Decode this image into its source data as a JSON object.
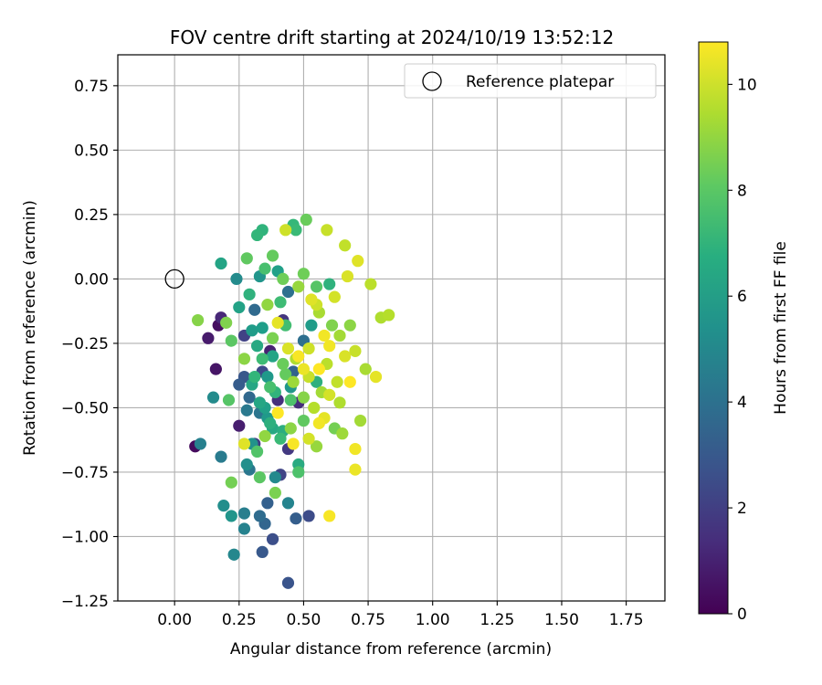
{
  "chart_data": {
    "type": "scatter",
    "title": "FOV centre drift starting at 2024/10/19 13:52:12",
    "xlabel": "Angular distance from reference (arcmin)",
    "ylabel": "Rotation from reference (arcmin)",
    "xlim": [
      -0.22,
      1.9
    ],
    "ylim": [
      -1.25,
      0.87
    ],
    "xticks": [
      0.0,
      0.25,
      0.5,
      0.75,
      1.0,
      1.25,
      1.5,
      1.75
    ],
    "xtick_labels": [
      "0.00",
      "0.25",
      "0.50",
      "0.75",
      "1.00",
      "1.25",
      "1.50",
      "1.75"
    ],
    "yticks": [
      0.75,
      0.5,
      0.25,
      0.0,
      -0.25,
      -0.5,
      -0.75,
      -1.0,
      -1.25
    ],
    "ytick_labels": [
      "0.75",
      "0.50",
      "0.25",
      "0.00",
      "−0.25",
      "−0.50",
      "−0.75",
      "−1.00",
      "−1.25"
    ],
    "grid": true,
    "legend": {
      "placement": "top-right",
      "label": "Reference platepar"
    },
    "reference_point": {
      "x": 0.0,
      "y": 0.0
    },
    "colorbar": {
      "label": "Hours from first FF file",
      "colormap": "viridis",
      "range": [
        0,
        10.8
      ],
      "ticks": [
        0,
        2,
        4,
        6,
        8,
        10
      ],
      "tick_labels": [
        "0",
        "2",
        "4",
        "6",
        "8",
        "10"
      ]
    },
    "points": [
      {
        "x": 0.08,
        "y": -0.65,
        "h": 0.3
      },
      {
        "x": 0.13,
        "y": -0.23,
        "h": 0.8
      },
      {
        "x": 0.17,
        "y": -0.18,
        "h": 0.4
      },
      {
        "x": 0.16,
        "y": -0.35,
        "h": 0.6
      },
      {
        "x": 0.18,
        "y": -0.15,
        "h": 1.2
      },
      {
        "x": 0.25,
        "y": -0.57,
        "h": 0.9
      },
      {
        "x": 0.37,
        "y": -0.28,
        "h": 1.0
      },
      {
        "x": 0.4,
        "y": -0.47,
        "h": 1.5
      },
      {
        "x": 0.44,
        "y": -0.66,
        "h": 1.8
      },
      {
        "x": 0.48,
        "y": -0.48,
        "h": 1.4
      },
      {
        "x": 0.31,
        "y": -0.64,
        "h": 1.9
      },
      {
        "x": 0.42,
        "y": -0.16,
        "h": 1.7
      },
      {
        "x": 0.27,
        "y": -0.22,
        "h": 2.1
      },
      {
        "x": 0.34,
        "y": -0.36,
        "h": 2.4
      },
      {
        "x": 0.38,
        "y": -1.01,
        "h": 2.6
      },
      {
        "x": 0.44,
        "y": -1.18,
        "h": 2.8
      },
      {
        "x": 0.34,
        "y": -1.06,
        "h": 3.0
      },
      {
        "x": 0.47,
        "y": -0.93,
        "h": 3.2
      },
      {
        "x": 0.52,
        "y": -0.92,
        "h": 2.5
      },
      {
        "x": 0.41,
        "y": -0.76,
        "h": 2.2
      },
      {
        "x": 0.35,
        "y": -0.95,
        "h": 3.5
      },
      {
        "x": 0.33,
        "y": -0.92,
        "h": 3.8
      },
      {
        "x": 0.36,
        "y": -0.87,
        "h": 3.3
      },
      {
        "x": 0.25,
        "y": -0.41,
        "h": 3.1
      },
      {
        "x": 0.29,
        "y": -0.46,
        "h": 3.6
      },
      {
        "x": 0.46,
        "y": -0.36,
        "h": 3.4
      },
      {
        "x": 0.5,
        "y": -0.24,
        "h": 3.9
      },
      {
        "x": 0.31,
        "y": -0.12,
        "h": 3.7
      },
      {
        "x": 0.44,
        "y": -0.05,
        "h": 4.0
      },
      {
        "x": 0.27,
        "y": -0.38,
        "h": 2.9
      },
      {
        "x": 0.33,
        "y": -0.52,
        "h": 4.2
      },
      {
        "x": 0.29,
        "y": -0.74,
        "h": 4.3
      },
      {
        "x": 0.27,
        "y": -0.91,
        "h": 4.6
      },
      {
        "x": 0.27,
        "y": -0.97,
        "h": 4.8
      },
      {
        "x": 0.23,
        "y": -1.07,
        "h": 5.0
      },
      {
        "x": 0.18,
        "y": -0.69,
        "h": 4.5
      },
      {
        "x": 0.1,
        "y": -0.64,
        "h": 4.7
      },
      {
        "x": 0.15,
        "y": -0.46,
        "h": 5.2
      },
      {
        "x": 0.28,
        "y": -0.51,
        "h": 4.4
      },
      {
        "x": 0.44,
        "y": -0.87,
        "h": 4.9
      },
      {
        "x": 0.39,
        "y": -0.77,
        "h": 5.1
      },
      {
        "x": 0.28,
        "y": -0.72,
        "h": 5.4
      },
      {
        "x": 0.22,
        "y": -0.92,
        "h": 5.6
      },
      {
        "x": 0.19,
        "y": -0.88,
        "h": 5.3
      },
      {
        "x": 0.3,
        "y": -0.64,
        "h": 5.5
      },
      {
        "x": 0.36,
        "y": -0.54,
        "h": 5.8
      },
      {
        "x": 0.45,
        "y": -0.42,
        "h": 5.7
      },
      {
        "x": 0.53,
        "y": -0.18,
        "h": 5.9
      },
      {
        "x": 0.34,
        "y": -0.19,
        "h": 6.0
      },
      {
        "x": 0.33,
        "y": 0.01,
        "h": 5.6
      },
      {
        "x": 0.4,
        "y": 0.03,
        "h": 6.1
      },
      {
        "x": 0.24,
        "y": 0.0,
        "h": 5.2
      },
      {
        "x": 0.25,
        "y": -0.11,
        "h": 6.2
      },
      {
        "x": 0.18,
        "y": 0.06,
        "h": 6.3
      },
      {
        "x": 0.3,
        "y": -0.41,
        "h": 6.4
      },
      {
        "x": 0.38,
        "y": -0.58,
        "h": 6.5
      },
      {
        "x": 0.48,
        "y": -0.72,
        "h": 6.6
      },
      {
        "x": 0.42,
        "y": -0.59,
        "h": 6.7
      },
      {
        "x": 0.55,
        "y": -0.4,
        "h": 6.8
      },
      {
        "x": 0.6,
        "y": -0.02,
        "h": 6.9
      },
      {
        "x": 0.34,
        "y": 0.19,
        "h": 7.0
      },
      {
        "x": 0.32,
        "y": 0.17,
        "h": 7.1
      },
      {
        "x": 0.46,
        "y": 0.21,
        "h": 7.2
      },
      {
        "x": 0.47,
        "y": 0.19,
        "h": 7.3
      },
      {
        "x": 0.34,
        "y": -0.31,
        "h": 7.4
      },
      {
        "x": 0.43,
        "y": -0.18,
        "h": 7.5
      },
      {
        "x": 0.37,
        "y": -0.42,
        "h": 7.6
      },
      {
        "x": 0.48,
        "y": -0.75,
        "h": 7.7
      },
      {
        "x": 0.32,
        "y": -0.67,
        "h": 7.8
      },
      {
        "x": 0.21,
        "y": -0.47,
        "h": 7.9
      },
      {
        "x": 0.22,
        "y": -0.24,
        "h": 8.0
      },
      {
        "x": 0.28,
        "y": 0.08,
        "h": 8.1
      },
      {
        "x": 0.38,
        "y": 0.09,
        "h": 8.2
      },
      {
        "x": 0.51,
        "y": 0.23,
        "h": 8.3
      },
      {
        "x": 0.5,
        "y": 0.02,
        "h": 8.4
      },
      {
        "x": 0.22,
        "y": -0.79,
        "h": 8.5
      },
      {
        "x": 0.39,
        "y": -0.83,
        "h": 8.6
      },
      {
        "x": 0.33,
        "y": -0.77,
        "h": 8.0
      },
      {
        "x": 0.2,
        "y": -0.17,
        "h": 8.7
      },
      {
        "x": 0.09,
        "y": -0.16,
        "h": 8.8
      },
      {
        "x": 0.27,
        "y": -0.31,
        "h": 8.9
      },
      {
        "x": 0.35,
        "y": -0.61,
        "h": 9.0
      },
      {
        "x": 0.55,
        "y": -0.65,
        "h": 9.1
      },
      {
        "x": 0.65,
        "y": -0.6,
        "h": 9.2
      },
      {
        "x": 0.72,
        "y": -0.55,
        "h": 9.3
      },
      {
        "x": 0.74,
        "y": -0.35,
        "h": 9.4
      },
      {
        "x": 0.8,
        "y": -0.15,
        "h": 9.5
      },
      {
        "x": 0.83,
        "y": -0.14,
        "h": 9.6
      },
      {
        "x": 0.76,
        "y": -0.02,
        "h": 9.7
      },
      {
        "x": 0.66,
        "y": 0.13,
        "h": 9.8
      },
      {
        "x": 0.59,
        "y": 0.19,
        "h": 9.9
      },
      {
        "x": 0.43,
        "y": 0.19,
        "h": 10.0
      },
      {
        "x": 0.62,
        "y": -0.07,
        "h": 10.1
      },
      {
        "x": 0.67,
        "y": 0.01,
        "h": 10.2
      },
      {
        "x": 0.71,
        "y": 0.07,
        "h": 10.3
      },
      {
        "x": 0.78,
        "y": -0.38,
        "h": 10.4
      },
      {
        "x": 0.7,
        "y": -0.74,
        "h": 10.5
      },
      {
        "x": 0.7,
        "y": -0.66,
        "h": 10.6
      },
      {
        "x": 0.6,
        "y": -0.92,
        "h": 10.7
      },
      {
        "x": 0.68,
        "y": -0.4,
        "h": 10.8
      },
      {
        "x": 0.56,
        "y": -0.56,
        "h": 10.6
      },
      {
        "x": 0.5,
        "y": -0.35,
        "h": 10.5
      },
      {
        "x": 0.48,
        "y": -0.3,
        "h": 10.7
      },
      {
        "x": 0.44,
        "y": -0.27,
        "h": 10.2
      },
      {
        "x": 0.4,
        "y": -0.17,
        "h": 10.4
      },
      {
        "x": 0.52,
        "y": -0.62,
        "h": 10.1
      },
      {
        "x": 0.27,
        "y": -0.64,
        "h": 10.3
      },
      {
        "x": 0.4,
        "y": -0.52,
        "h": 10.8
      },
      {
        "x": 0.6,
        "y": -0.26,
        "h": 10.6
      },
      {
        "x": 0.55,
        "y": -0.1,
        "h": 10.0
      },
      {
        "x": 0.59,
        "y": -0.33,
        "h": 9.7
      },
      {
        "x": 0.64,
        "y": -0.48,
        "h": 9.5
      },
      {
        "x": 0.57,
        "y": -0.44,
        "h": 9.3
      },
      {
        "x": 0.63,
        "y": -0.4,
        "h": 9.8
      },
      {
        "x": 0.66,
        "y": -0.3,
        "h": 10.2
      },
      {
        "x": 0.7,
        "y": -0.28,
        "h": 9.9
      },
      {
        "x": 0.36,
        "y": -0.1,
        "h": 9.0
      },
      {
        "x": 0.38,
        "y": -0.23,
        "h": 8.6
      },
      {
        "x": 0.42,
        "y": -0.33,
        "h": 8.3
      },
      {
        "x": 0.46,
        "y": -0.4,
        "h": 9.2
      },
      {
        "x": 0.5,
        "y": -0.46,
        "h": 8.8
      },
      {
        "x": 0.54,
        "y": -0.5,
        "h": 9.6
      },
      {
        "x": 0.58,
        "y": -0.54,
        "h": 10.4
      },
      {
        "x": 0.45,
        "y": -0.58,
        "h": 8.9
      },
      {
        "x": 0.41,
        "y": -0.62,
        "h": 7.3
      },
      {
        "x": 0.37,
        "y": -0.56,
        "h": 6.8
      },
      {
        "x": 0.33,
        "y": -0.48,
        "h": 6.4
      },
      {
        "x": 0.31,
        "y": -0.38,
        "h": 7.1
      },
      {
        "x": 0.32,
        "y": -0.26,
        "h": 6.5
      },
      {
        "x": 0.3,
        "y": -0.2,
        "h": 5.9
      },
      {
        "x": 0.29,
        "y": -0.06,
        "h": 6.9
      },
      {
        "x": 0.35,
        "y": 0.04,
        "h": 7.6
      },
      {
        "x": 0.42,
        "y": 0.0,
        "h": 8.4
      },
      {
        "x": 0.48,
        "y": -0.03,
        "h": 9.1
      },
      {
        "x": 0.53,
        "y": -0.08,
        "h": 10.3
      },
      {
        "x": 0.56,
        "y": -0.13,
        "h": 9.4
      },
      {
        "x": 0.61,
        "y": -0.18,
        "h": 8.7
      },
      {
        "x": 0.58,
        "y": -0.22,
        "h": 10.6
      },
      {
        "x": 0.52,
        "y": -0.27,
        "h": 10.0
      },
      {
        "x": 0.47,
        "y": -0.31,
        "h": 9.5
      },
      {
        "x": 0.43,
        "y": -0.37,
        "h": 8.2
      },
      {
        "x": 0.39,
        "y": -0.44,
        "h": 7.0
      },
      {
        "x": 0.35,
        "y": -0.5,
        "h": 6.1
      },
      {
        "x": 0.52,
        "y": -0.38,
        "h": 9.9
      },
      {
        "x": 0.6,
        "y": -0.45,
        "h": 10.1
      },
      {
        "x": 0.64,
        "y": -0.22,
        "h": 9.3
      },
      {
        "x": 0.68,
        "y": -0.18,
        "h": 8.9
      },
      {
        "x": 0.55,
        "y": -0.03,
        "h": 7.9
      },
      {
        "x": 0.41,
        "y": -0.09,
        "h": 7.4
      },
      {
        "x": 0.38,
        "y": -0.3,
        "h": 6.3
      },
      {
        "x": 0.36,
        "y": -0.38,
        "h": 5.8
      },
      {
        "x": 0.45,
        "y": -0.47,
        "h": 7.7
      },
      {
        "x": 0.5,
        "y": -0.55,
        "h": 8.1
      },
      {
        "x": 0.46,
        "y": -0.64,
        "h": 10.7
      },
      {
        "x": 0.62,
        "y": -0.58,
        "h": 8.5
      },
      {
        "x": 0.56,
        "y": -0.35,
        "h": 10.8
      }
    ]
  }
}
